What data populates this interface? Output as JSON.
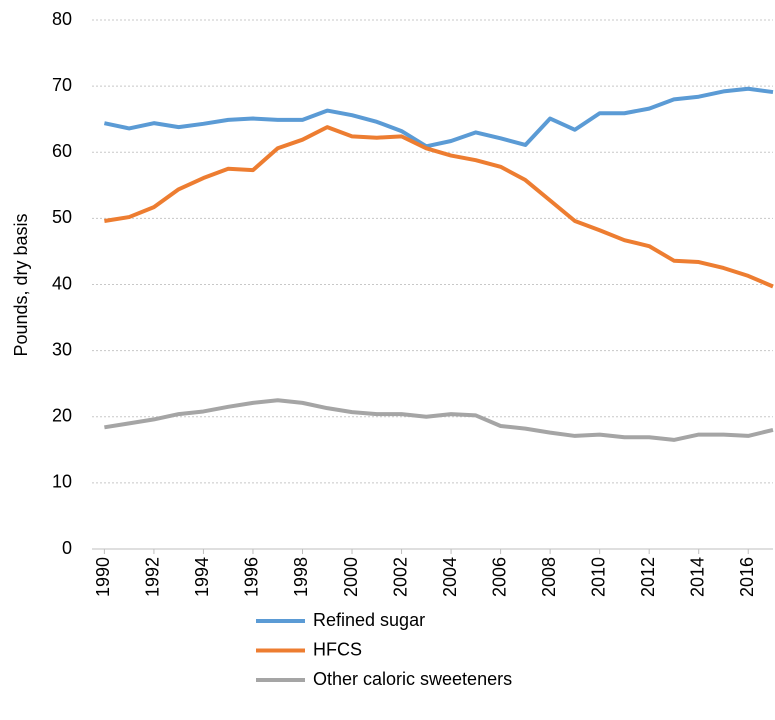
{
  "chart_data": {
    "type": "line",
    "y_label": "Pounds, dry basis",
    "x": [
      1990,
      1991,
      1992,
      1993,
      1994,
      1995,
      1996,
      1997,
      1998,
      1999,
      2000,
      2001,
      2002,
      2003,
      2004,
      2005,
      2006,
      2007,
      2008,
      2009,
      2010,
      2011,
      2012,
      2013,
      2014,
      2015,
      2016,
      2017
    ],
    "series": [
      {
        "name": "Refined sugar",
        "color": "#5b9bd5",
        "values": [
          64.4,
          63.6,
          64.4,
          63.8,
          64.3,
          64.9,
          65.1,
          64.9,
          64.9,
          66.3,
          65.6,
          64.6,
          63.2,
          60.9,
          61.7,
          63.0,
          62.1,
          61.1,
          65.1,
          63.4,
          65.9,
          65.9,
          66.6,
          68.0,
          68.4,
          69.2,
          69.6,
          69.1
        ]
      },
      {
        "name": "HFCS",
        "color": "#ed7d31",
        "values": [
          49.6,
          50.2,
          51.7,
          54.4,
          56.1,
          57.5,
          57.3,
          60.6,
          61.9,
          63.8,
          62.4,
          62.2,
          62.4,
          60.6,
          59.5,
          58.8,
          57.8,
          55.8,
          52.7,
          49.6,
          48.2,
          46.7,
          45.8,
          43.6,
          43.4,
          42.5,
          41.3,
          39.7
        ]
      },
      {
        "name": "Other caloric sweeteners",
        "color": "#a5a5a5",
        "values": [
          18.4,
          19.0,
          19.6,
          20.4,
          20.8,
          21.5,
          22.1,
          22.5,
          22.1,
          21.3,
          20.7,
          20.4,
          20.4,
          20.0,
          20.4,
          20.2,
          18.6,
          18.2,
          17.6,
          17.1,
          17.3,
          16.9,
          16.9,
          16.5,
          17.3,
          17.3,
          17.1,
          18.0
        ]
      }
    ],
    "xlim": [
      1989.5,
      2017
    ],
    "xticks": [
      1990,
      1992,
      1994,
      1996,
      1998,
      2000,
      2002,
      2004,
      2006,
      2008,
      2010,
      2012,
      2014,
      2016
    ],
    "ylim": [
      0,
      80
    ],
    "yticks": [
      0,
      10,
      20,
      30,
      40,
      50,
      60,
      70,
      80
    ],
    "grid": true,
    "legend": "bottom"
  }
}
